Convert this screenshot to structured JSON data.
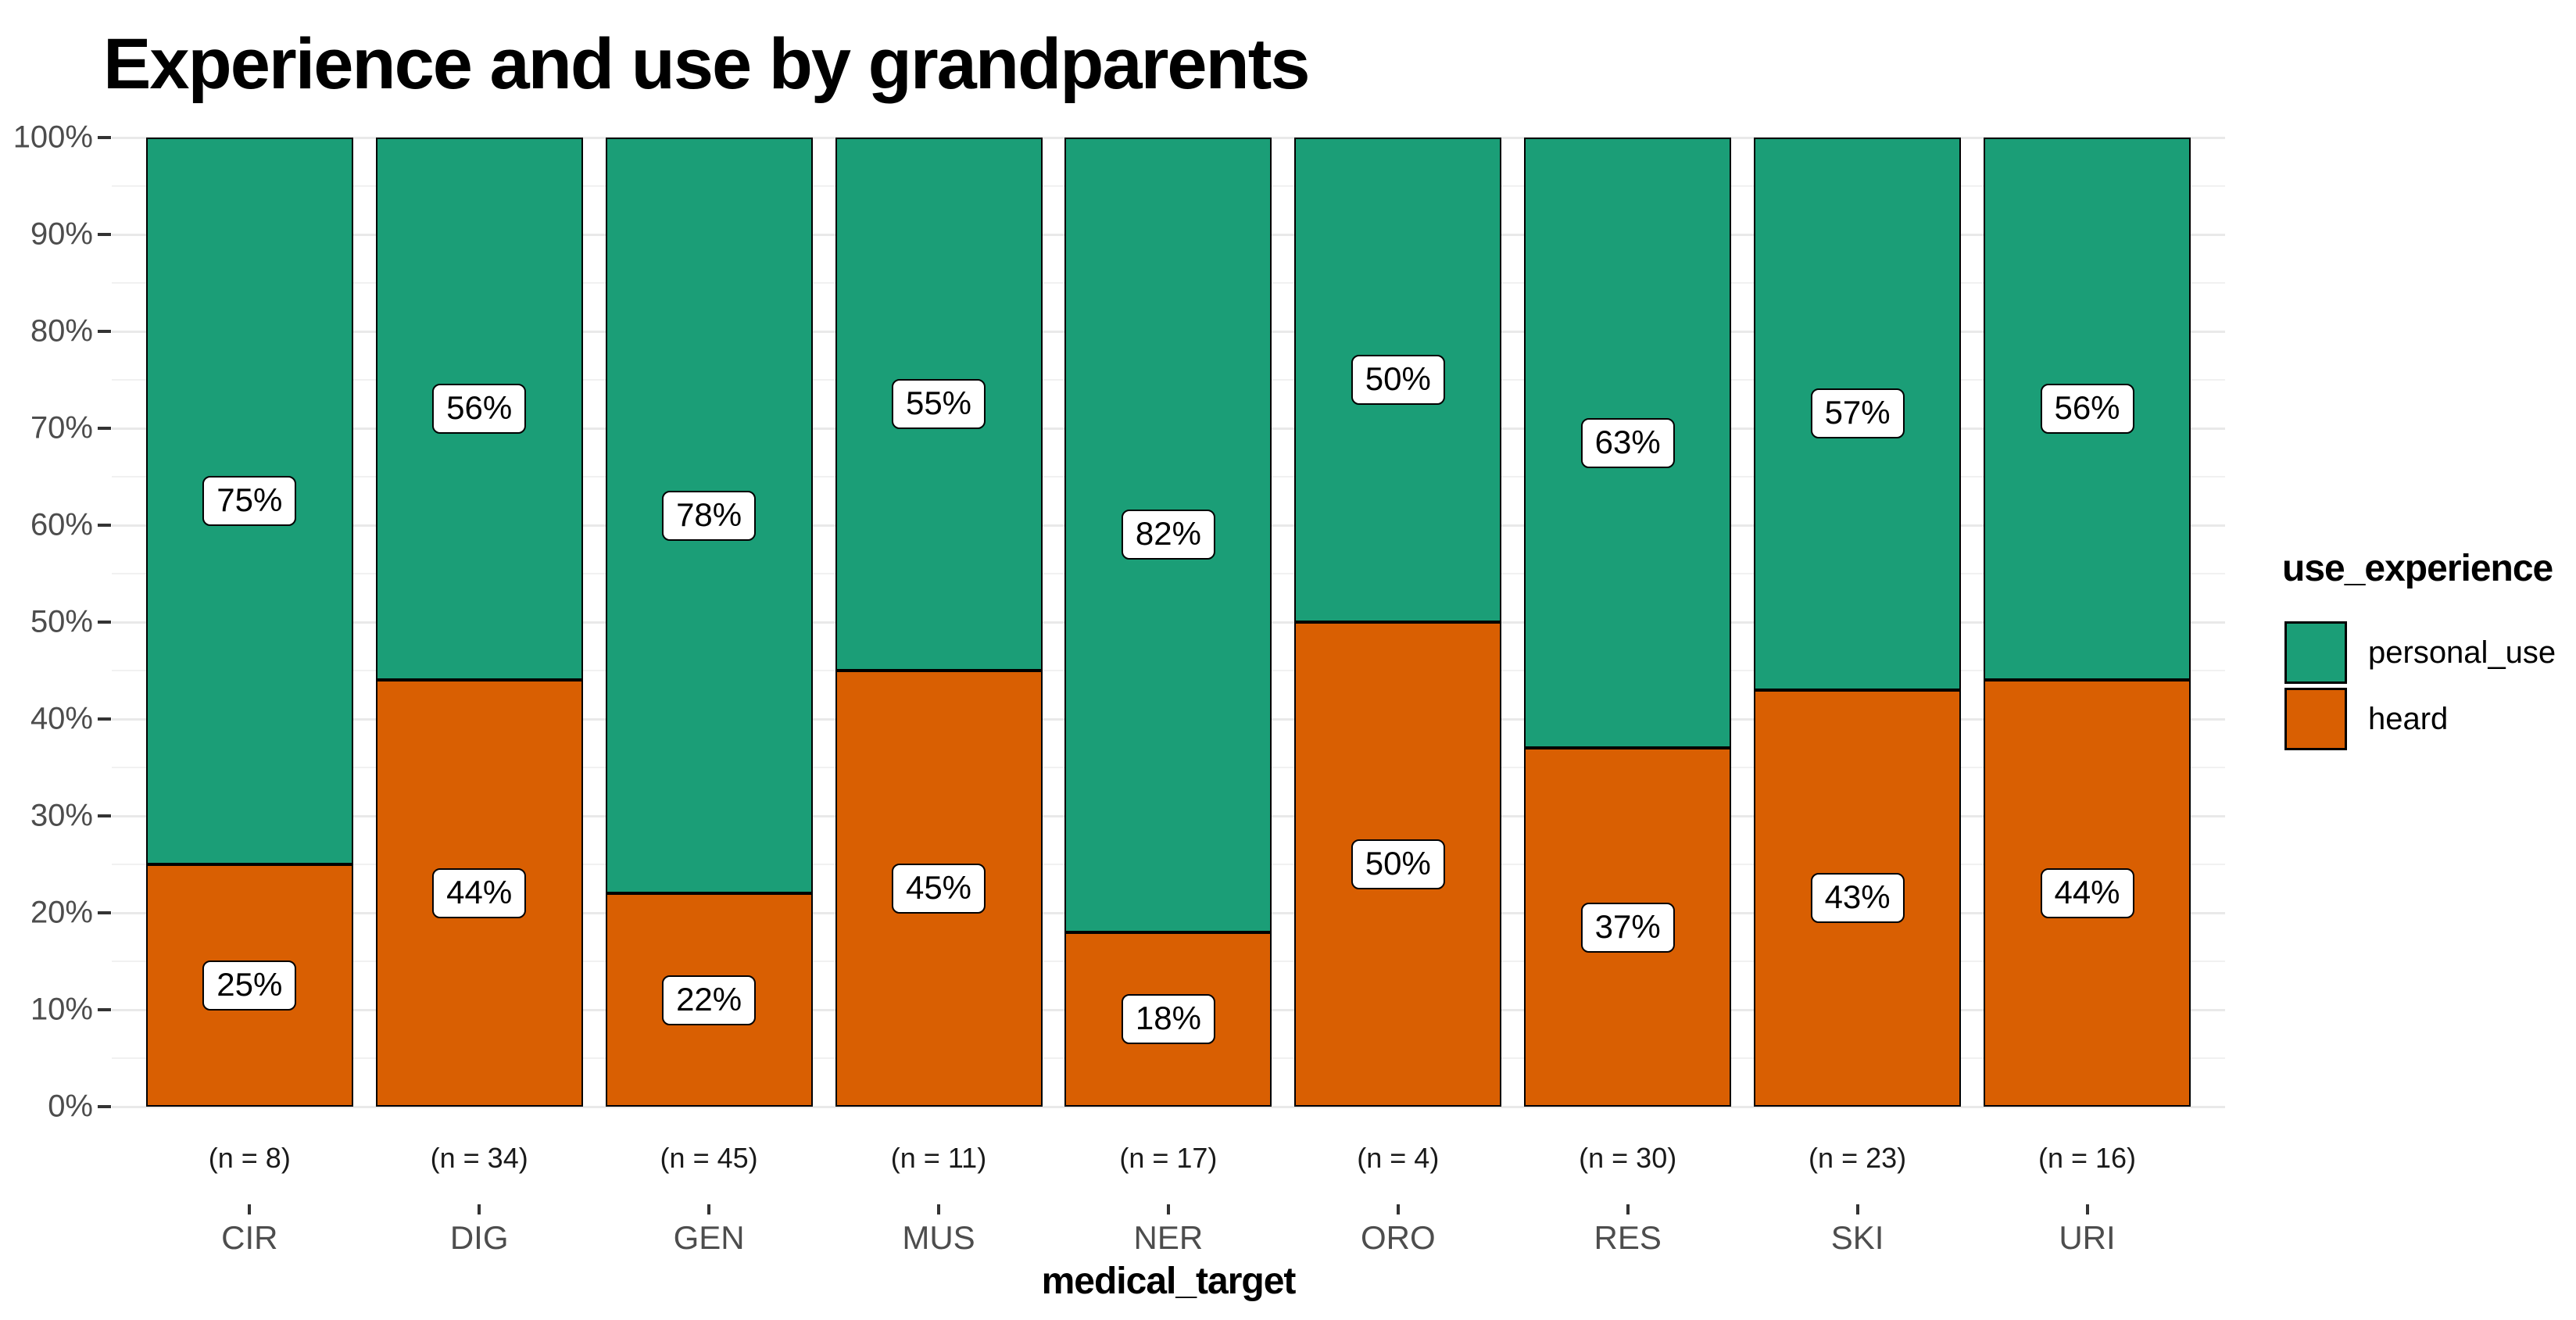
{
  "title": "Experience and use by grandparents",
  "x_axis": {
    "title": "medical_target"
  },
  "y_axis": {
    "tick_labels": [
      "0%",
      "10%",
      "20%",
      "30%",
      "40%",
      "50%",
      "60%",
      "70%",
      "80%",
      "90%",
      "100%"
    ],
    "tick_values": [
      0,
      10,
      20,
      30,
      40,
      50,
      60,
      70,
      80,
      90,
      100
    ]
  },
  "legend": {
    "title": "use_experience"
  },
  "chart_data": {
    "type": "bar",
    "stacked": true,
    "percent_scale": true,
    "title": "Experience and use by grandparents",
    "xlabel": "medical_target",
    "ylabel": "",
    "ylim": [
      0,
      100
    ],
    "grid": "major and minor horizontal gridlines, 5% spacing",
    "legend_position": "right",
    "legend_title": "use_experience",
    "categories": [
      "CIR",
      "DIG",
      "GEN",
      "MUS",
      "NER",
      "ORO",
      "RES",
      "SKI",
      "URI"
    ],
    "n_labels": [
      "(n = 8)",
      "(n = 34)",
      "(n = 45)",
      "(n = 11)",
      "(n = 17)",
      "(n = 4)",
      "(n = 30)",
      "(n = 23)",
      "(n = 16)"
    ],
    "n_values": [
      8,
      34,
      45,
      11,
      17,
      4,
      30,
      23,
      16
    ],
    "series": [
      {
        "name": "personal_use",
        "color": "#1B9E77",
        "values": [
          75,
          56,
          78,
          55,
          82,
          50,
          63,
          57,
          56
        ],
        "data_labels": [
          "75%",
          "56%",
          "78%",
          "55%",
          "82%",
          "50%",
          "63%",
          "57%",
          "56%"
        ]
      },
      {
        "name": "heard",
        "color": "#D95F02",
        "values": [
          25,
          44,
          22,
          45,
          18,
          50,
          37,
          43,
          44
        ],
        "data_labels": [
          "25%",
          "44%",
          "22%",
          "45%",
          "18%",
          "50%",
          "37%",
          "43%",
          "44%"
        ]
      }
    ]
  },
  "colors": {
    "bar_border": "#000000",
    "grid_major": "#E9E9E9",
    "grid_minor": "#F1F1F1",
    "axis_text": "#4D4D4D",
    "tick_mark": "#333333",
    "label_box_bg": "#FFFFFF",
    "background": "#FFFFFF"
  }
}
